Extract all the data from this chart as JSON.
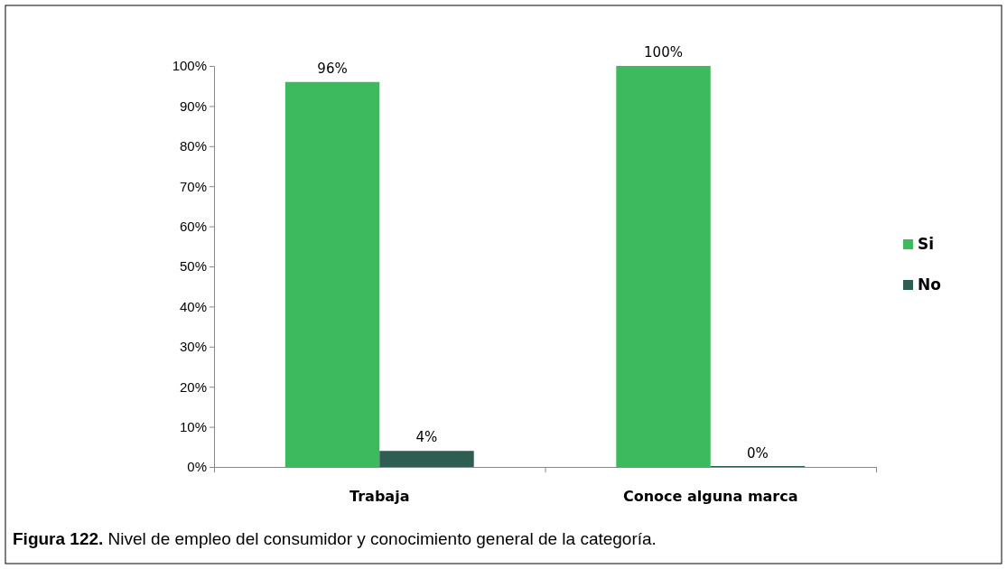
{
  "chart_data": {
    "type": "bar",
    "categories": [
      "Trabaja",
      "Conoce alguna marca"
    ],
    "series": [
      {
        "name": "Si",
        "color": "#3dba5e",
        "values": [
          96,
          100
        ],
        "value_labels": [
          "96%",
          "100%"
        ]
      },
      {
        "name": "No",
        "color": "#2e5e52",
        "values": [
          4,
          0
        ],
        "value_labels": [
          "4%",
          "0%"
        ]
      }
    ],
    "ylim": [
      0,
      100
    ],
    "yticks": [
      {
        "value": 0,
        "label": "0%"
      },
      {
        "value": 10,
        "label": "10%"
      },
      {
        "value": 20,
        "label": "20%"
      },
      {
        "value": 30,
        "label": "30%"
      },
      {
        "value": 40,
        "label": "40%"
      },
      {
        "value": 50,
        "label": "50%"
      },
      {
        "value": 60,
        "label": "60%"
      },
      {
        "value": 70,
        "label": "70%"
      },
      {
        "value": 80,
        "label": "80%"
      },
      {
        "value": 90,
        "label": "90%"
      },
      {
        "value": 100,
        "label": "100%"
      }
    ],
    "legend": "right",
    "annotations": [
      "Figura 122. Nivel de empleo del consumidor y conocimiento general de la categoría."
    ]
  }
}
